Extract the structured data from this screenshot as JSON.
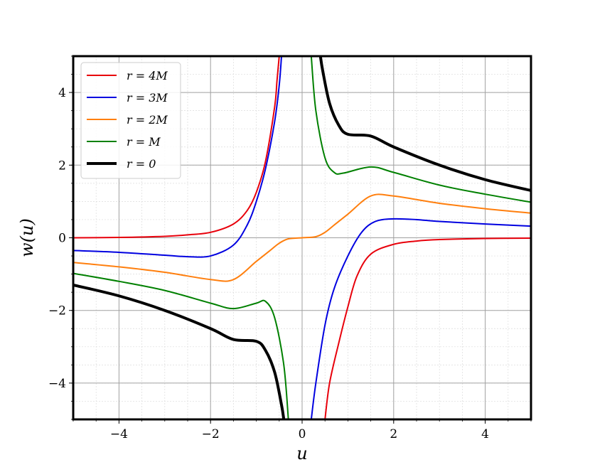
{
  "chart_data": {
    "type": "line",
    "title": "",
    "xlabel": "u",
    "ylabel": "w(u)",
    "xlim": [
      -5,
      5
    ],
    "ylim": [
      -5,
      5
    ],
    "x_ticks": [
      -4,
      -2,
      0,
      2,
      4
    ],
    "y_ticks": [
      -4,
      -2,
      0,
      2,
      4
    ],
    "x_tick_labels": [
      "−4",
      "−2",
      "0",
      "2",
      "4"
    ],
    "y_tick_labels": [
      "−4",
      "−2",
      "0",
      "2",
      "4"
    ],
    "grid": true,
    "minor_grid": true,
    "legend_position": "top-left",
    "series": [
      {
        "name": "r = 4M",
        "color": "#e8000b",
        "line_width": 2,
        "segments": [
          [
            [
              -5,
              0.0
            ],
            [
              -4,
              0.01
            ],
            [
              -3,
              0.04
            ],
            [
              -2.5,
              0.08
            ],
            [
              -2,
              0.15
            ],
            [
              -1.5,
              0.38
            ],
            [
              -1.2,
              0.75
            ],
            [
              -1,
              1.25
            ],
            [
              -0.8,
              2.1
            ],
            [
              -0.6,
              3.6
            ],
            [
              -0.55,
              4.3
            ],
            [
              -0.5,
              5.0
            ]
          ],
          [
            [
              0.5,
              -5.0
            ],
            [
              0.6,
              -4.0
            ],
            [
              0.8,
              -2.9
            ],
            [
              1,
              -1.9
            ],
            [
              1.2,
              -1.05
            ],
            [
              1.5,
              -0.45
            ],
            [
              2,
              -0.18
            ],
            [
              2.5,
              -0.09
            ],
            [
              3,
              -0.05
            ],
            [
              4,
              -0.02
            ],
            [
              5,
              -0.01
            ]
          ]
        ]
      },
      {
        "name": "r = 3M",
        "color": "#0000e0",
        "line_width": 2,
        "segments": [
          [
            [
              -5,
              -0.35
            ],
            [
              -4,
              -0.4
            ],
            [
              -3,
              -0.48
            ],
            [
              -2.5,
              -0.52
            ],
            [
              -2,
              -0.5
            ],
            [
              -1.5,
              -0.2
            ],
            [
              -1.2,
              0.35
            ],
            [
              -1,
              1.0
            ],
            [
              -0.8,
              1.9
            ],
            [
              -0.6,
              3.2
            ],
            [
              -0.5,
              4.2
            ],
            [
              -0.45,
              5.0
            ]
          ],
          [
            [
              0.2,
              -5.0
            ],
            [
              0.3,
              -4.0
            ],
            [
              0.5,
              -2.4
            ],
            [
              0.7,
              -1.4
            ],
            [
              1,
              -0.5
            ],
            [
              1.3,
              0.15
            ],
            [
              1.6,
              0.45
            ],
            [
              2,
              0.52
            ],
            [
              2.5,
              0.5
            ],
            [
              3,
              0.45
            ],
            [
              4,
              0.38
            ],
            [
              5,
              0.32
            ]
          ]
        ]
      },
      {
        "name": "r = 2M",
        "color": "#ff7f0e",
        "line_width": 2,
        "segments": [
          [
            [
              -5,
              -0.68
            ],
            [
              -4,
              -0.8
            ],
            [
              -3,
              -0.95
            ],
            [
              -2,
              -1.15
            ],
            [
              -1.5,
              -1.15
            ],
            [
              -1,
              -0.65
            ],
            [
              -0.7,
              -0.35
            ],
            [
              -0.5,
              -0.15
            ],
            [
              -0.3,
              -0.03
            ],
            [
              0,
              0.0
            ],
            [
              0.3,
              0.03
            ],
            [
              0.5,
              0.15
            ],
            [
              0.7,
              0.35
            ],
            [
              1,
              0.65
            ],
            [
              1.5,
              1.15
            ],
            [
              2,
              1.15
            ],
            [
              3,
              0.95
            ],
            [
              4,
              0.8
            ],
            [
              5,
              0.68
            ]
          ]
        ]
      },
      {
        "name": "r = M",
        "color": "#008000",
        "line_width": 2,
        "segments": [
          [
            [
              -5,
              -0.98
            ],
            [
              -4,
              -1.2
            ],
            [
              -3,
              -1.45
            ],
            [
              -2,
              -1.8
            ],
            [
              -1.5,
              -1.95
            ],
            [
              -1,
              -1.8
            ],
            [
              -0.8,
              -1.75
            ],
            [
              -0.6,
              -2.2
            ],
            [
              -0.4,
              -3.5
            ],
            [
              -0.3,
              -5.0
            ]
          ],
          [
            [
              0.2,
              5.0
            ],
            [
              0.3,
              3.5
            ],
            [
              0.5,
              2.2
            ],
            [
              0.7,
              1.8
            ],
            [
              0.9,
              1.78
            ],
            [
              1.5,
              1.95
            ],
            [
              2,
              1.8
            ],
            [
              3,
              1.45
            ],
            [
              4,
              1.2
            ],
            [
              5,
              0.98
            ]
          ]
        ]
      },
      {
        "name": "r = 0",
        "color": "#000000",
        "line_width": 4,
        "segments": [
          [
            [
              -5,
              -1.3
            ],
            [
              -4,
              -1.6
            ],
            [
              -3,
              -2.0
            ],
            [
              -2,
              -2.5
            ],
            [
              -1.5,
              -2.8
            ],
            [
              -1,
              -2.85
            ],
            [
              -0.8,
              -3.1
            ],
            [
              -0.6,
              -3.7
            ],
            [
              -0.45,
              -4.6
            ],
            [
              -0.4,
              -5.0
            ]
          ],
          [
            [
              0.4,
              5.0
            ],
            [
              0.45,
              4.6
            ],
            [
              0.6,
              3.7
            ],
            [
              0.8,
              3.1
            ],
            [
              1,
              2.85
            ],
            [
              1.5,
              2.8
            ],
            [
              2,
              2.5
            ],
            [
              3,
              2.0
            ],
            [
              4,
              1.6
            ],
            [
              5,
              1.3
            ]
          ]
        ]
      }
    ]
  }
}
